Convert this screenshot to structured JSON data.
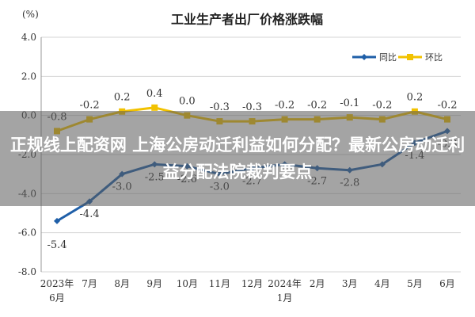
{
  "chart_data": {
    "type": "line",
    "title": "工业生产者出厂价格涨跌幅",
    "ylabel": "(%)",
    "ylim": [
      -8.0,
      4.0
    ],
    "yticks": [
      4.0,
      2.0,
      0.0,
      -2.0,
      -4.0,
      -6.0,
      -8.0
    ],
    "ytick_labels": [
      "4.0",
      "2.0",
      "0.0",
      "-2.0",
      "-4.0",
      "-6.0",
      "-8.0"
    ],
    "categories": [
      "2023年\n6月",
      "7月",
      "8月",
      "9月",
      "10月",
      "11月",
      "12月",
      "2024年\n1月",
      "2月",
      "3月",
      "4月",
      "5月",
      "6月"
    ],
    "legend_position": "top-right",
    "series": [
      {
        "name": "同比",
        "color": "#1f5fa8",
        "values": [
          -5.4,
          -4.4,
          -3.0,
          -2.5,
          -2.6,
          -3.0,
          -2.7,
          -2.5,
          -2.7,
          -2.8,
          -2.5,
          -1.4,
          -0.8
        ],
        "labels": [
          "-5.4",
          "-4.4",
          "-3.0",
          "-2.5",
          "-2.6",
          "-3.0",
          "-2.7",
          "",
          "-2.7",
          "-2.8",
          "",
          "-1.4",
          "-0.8"
        ]
      },
      {
        "name": "环比",
        "color": "#f2c200",
        "values": [
          -0.8,
          -0.2,
          0.2,
          0.4,
          0.0,
          -0.3,
          -0.3,
          -0.2,
          -0.2,
          -0.1,
          -0.2,
          0.2,
          -0.2
        ],
        "labels": [
          "-0.8",
          "-0.2",
          "0.2",
          "0.4",
          "0.0",
          "-0.3",
          "-0.3",
          "-0.2",
          "-0.2",
          "-0.1",
          "-0.2",
          "0.2",
          "-0.2"
        ]
      }
    ]
  },
  "overlay": {
    "text": "正规线上配资网 上海公房动迁利益如何分配？最新公房动迁利益分配法院裁判要点"
  }
}
